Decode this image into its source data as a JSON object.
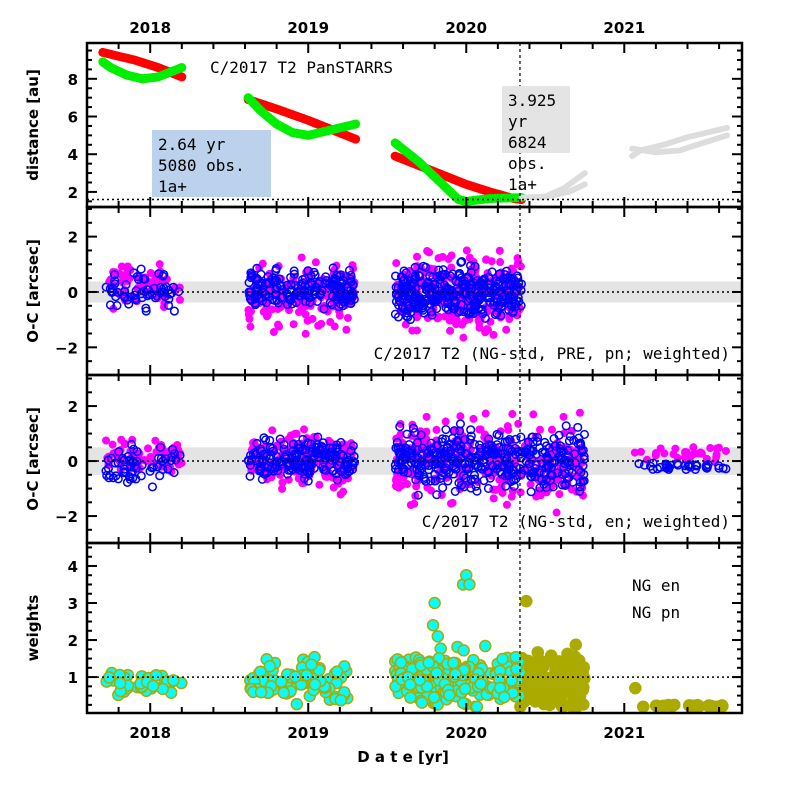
{
  "chart_data": [
    {
      "type": "line",
      "panel": "distance",
      "title": "C/2017 T2 PanSTARRS",
      "ylabel": "distance [au]",
      "xlim": [
        2017.6,
        2021.75
      ],
      "ylim": [
        1.2,
        9.9
      ],
      "yticks": [
        2,
        4,
        6,
        8
      ],
      "x_top_ticks": [
        "2018",
        "2019",
        "2020",
        "2021"
      ],
      "hline": 1.6,
      "vline": 2020.34,
      "colors": {
        "heliocentric": "#ff0000",
        "geocentric": "#00ee00",
        "future": "#dddddd"
      },
      "series": [
        {
          "color_key": "heliocentric",
          "points": [
            [
              2017.7,
              9.4
            ],
            [
              2017.9,
              9.0
            ],
            [
              2018.05,
              8.6
            ],
            [
              2018.2,
              8.1
            ]
          ]
        },
        {
          "color_key": "heliocentric",
          "points": [
            [
              2018.62,
              6.9
            ],
            [
              2018.8,
              6.4
            ],
            [
              2019.0,
              5.8
            ],
            [
              2019.15,
              5.3
            ],
            [
              2019.3,
              4.8
            ]
          ]
        },
        {
          "color_key": "heliocentric",
          "points": [
            [
              2019.55,
              3.9
            ],
            [
              2019.7,
              3.4
            ],
            [
              2019.85,
              2.9
            ],
            [
              2020.0,
              2.4
            ],
            [
              2020.15,
              2.0
            ],
            [
              2020.3,
              1.65
            ],
            [
              2020.35,
              1.6
            ]
          ]
        },
        {
          "color_key": "geocentric",
          "points": [
            [
              2017.7,
              8.9
            ],
            [
              2017.75,
              8.6
            ],
            [
              2017.85,
              8.2
            ],
            [
              2017.95,
              8.0
            ],
            [
              2018.05,
              8.1
            ],
            [
              2018.2,
              8.6
            ]
          ]
        },
        {
          "color_key": "geocentric",
          "points": [
            [
              2018.62,
              7.0
            ],
            [
              2018.7,
              6.3
            ],
            [
              2018.8,
              5.6
            ],
            [
              2018.9,
              5.15
            ],
            [
              2019.0,
              5.0
            ],
            [
              2019.15,
              5.3
            ],
            [
              2019.3,
              5.6
            ]
          ]
        },
        {
          "color_key": "geocentric",
          "points": [
            [
              2019.55,
              4.6
            ],
            [
              2019.7,
              3.6
            ],
            [
              2019.85,
              2.4
            ],
            [
              2019.95,
              1.6
            ],
            [
              2020.0,
              1.5
            ],
            [
              2020.15,
              1.65
            ],
            [
              2020.35,
              1.7
            ]
          ]
        },
        {
          "color_key": "future",
          "points": [
            [
              2020.35,
              1.7
            ],
            [
              2020.5,
              1.75
            ],
            [
              2020.62,
              2.2
            ],
            [
              2020.75,
              3.0
            ]
          ]
        },
        {
          "color_key": "future",
          "points": [
            [
              2020.5,
              1.75
            ],
            [
              2020.65,
              2.0
            ],
            [
              2020.75,
              2.4
            ]
          ]
        },
        {
          "color_key": "future",
          "points": [
            [
              2021.05,
              3.9
            ],
            [
              2021.1,
              4.2
            ],
            [
              2021.25,
              4.5
            ],
            [
              2021.4,
              4.9
            ],
            [
              2021.55,
              5.2
            ],
            [
              2021.65,
              5.4
            ]
          ]
        },
        {
          "color_key": "future",
          "points": [
            [
              2021.05,
              4.3
            ],
            [
              2021.2,
              4.1
            ],
            [
              2021.35,
              4.2
            ],
            [
              2021.5,
              4.6
            ],
            [
              2021.65,
              5.0
            ]
          ]
        }
      ],
      "boxes": [
        {
          "lines": [
            "2.64 yr",
            "5080 obs.",
            "1a+"
          ],
          "color": "#bcd2ec"
        },
        {
          "lines": [
            "3.925 yr",
            "6824 obs.",
            "1a+"
          ],
          "color": "#e4e4e4"
        }
      ]
    },
    {
      "type": "scatter",
      "panel": "oc-pre",
      "title": "C/2017 T2 (NG-std, PRE, pn; weighted)",
      "ylabel": "O-C [arcsec]",
      "ylim": [
        -3,
        3.07
      ],
      "yticks": [
        -2,
        0,
        2
      ],
      "band": 0.38,
      "colors": {
        "ra": "#ff00ff",
        "dec": "#0000ff"
      },
      "clusters": [
        {
          "series": "ra",
          "x": [
            2017.72,
            2018.2
          ],
          "center": 0.2,
          "spread": 0.45,
          "n": 70
        },
        {
          "series": "dec",
          "x": [
            2017.72,
            2018.2
          ],
          "center": 0.0,
          "spread": 0.4,
          "n": 60
        },
        {
          "series": "ra",
          "x": [
            2018.62,
            2019.3
          ],
          "center": -0.1,
          "spread": 0.7,
          "n": 160
        },
        {
          "series": "dec",
          "x": [
            2018.62,
            2019.3
          ],
          "center": 0.05,
          "spread": 0.45,
          "n": 180
        },
        {
          "series": "ra",
          "x": [
            2019.55,
            2020.35
          ],
          "center": 0.0,
          "spread": 0.8,
          "n": 260
        },
        {
          "series": "dec",
          "x": [
            2019.55,
            2020.35
          ],
          "center": -0.05,
          "spread": 0.55,
          "n": 320
        }
      ]
    },
    {
      "type": "scatter",
      "panel": "oc-en",
      "title": "C/2017 T2 (NG-std, en; weighted)",
      "ylabel": "O-C [arcsec]",
      "ylim": [
        -2.98,
        3.13
      ],
      "yticks": [
        -2,
        0,
        2
      ],
      "band": 0.5,
      "colors": {
        "ra": "#ff00ff",
        "dec": "#0000ff"
      },
      "clusters": [
        {
          "series": "ra",
          "x": [
            2017.72,
            2018.2
          ],
          "center": 0.3,
          "spread": 0.45,
          "n": 70
        },
        {
          "series": "dec",
          "x": [
            2017.72,
            2018.2
          ],
          "center": -0.1,
          "spread": 0.4,
          "n": 60
        },
        {
          "series": "ra",
          "x": [
            2018.62,
            2019.3
          ],
          "center": 0.0,
          "spread": 0.65,
          "n": 160
        },
        {
          "series": "dec",
          "x": [
            2018.62,
            2019.3
          ],
          "center": 0.1,
          "spread": 0.45,
          "n": 180
        },
        {
          "series": "ra",
          "x": [
            2019.55,
            2020.75
          ],
          "center": 0.0,
          "spread": 0.9,
          "n": 300
        },
        {
          "series": "dec",
          "x": [
            2019.55,
            2020.75
          ],
          "center": 0.0,
          "spread": 0.65,
          "n": 380
        },
        {
          "series": "ra",
          "x": [
            2021.05,
            2021.65
          ],
          "center": 0.25,
          "spread": 0.2,
          "n": 30
        },
        {
          "series": "dec",
          "x": [
            2021.05,
            2021.65
          ],
          "center": -0.2,
          "spread": 0.1,
          "n": 35
        }
      ]
    },
    {
      "type": "scatter",
      "panel": "weights",
      "xlabel": "D a t e [yr]",
      "ylabel": "weights",
      "ylim": [
        0.03,
        4.62
      ],
      "yticks": [
        1,
        2,
        3,
        4
      ],
      "x_bottom_ticks": [
        "2018",
        "2019",
        "2020",
        "2021"
      ],
      "hline": 1,
      "legend": [
        {
          "label": "NG en",
          "color": "#aaaa00"
        },
        {
          "label": "NG pn",
          "color": "#00ffff"
        }
      ],
      "clusters": [
        {
          "series": "en",
          "x": [
            2020.34,
            2020.75
          ],
          "center": 0.9,
          "spread": 0.5,
          "n": 140
        },
        {
          "series": "en",
          "x": [
            2021.2,
            2021.65
          ],
          "center": 0.22,
          "spread": 0.02,
          "n": 25
        },
        {
          "series": "pn",
          "x": [
            2017.72,
            2018.2
          ],
          "center": 0.8,
          "spread": 0.2,
          "n": 40
        },
        {
          "series": "pn",
          "x": [
            2018.62,
            2019.3
          ],
          "center": 0.95,
          "spread": 0.35,
          "n": 90
        },
        {
          "series": "pn",
          "x": [
            2019.55,
            2020.34
          ],
          "center": 0.9,
          "spread": 0.45,
          "n": 220
        }
      ],
      "outliers": [
        {
          "series": "en",
          "x": 2020.38,
          "y": 3.05
        },
        {
          "series": "en",
          "x": 2021.07,
          "y": 0.7
        },
        {
          "series": "en",
          "x": 2021.12,
          "y": 0.2
        },
        {
          "series": "pn",
          "x": 2019.8,
          "y": 3.0
        },
        {
          "series": "pn",
          "x": 2019.79,
          "y": 2.4
        },
        {
          "series": "pn",
          "x": 2019.82,
          "y": 2.1
        },
        {
          "series": "pn",
          "x": 2019.98,
          "y": 3.5
        },
        {
          "series": "pn",
          "x": 2020.0,
          "y": 3.75
        },
        {
          "series": "pn",
          "x": 2020.02,
          "y": 3.5
        }
      ]
    }
  ]
}
